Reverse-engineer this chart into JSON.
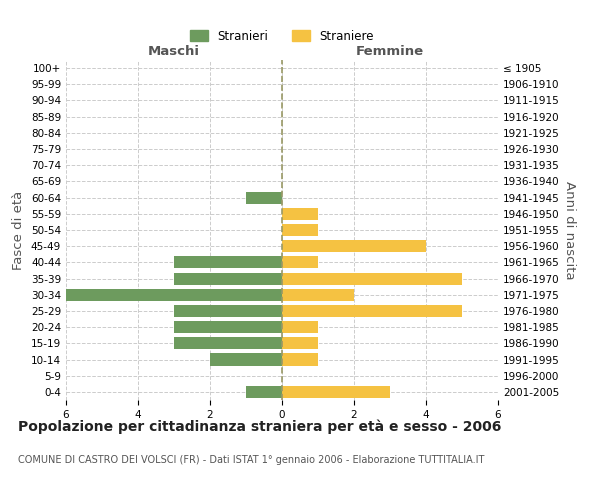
{
  "age_groups": [
    "100+",
    "95-99",
    "90-94",
    "85-89",
    "80-84",
    "75-79",
    "70-74",
    "65-69",
    "60-64",
    "55-59",
    "50-54",
    "45-49",
    "40-44",
    "35-39",
    "30-34",
    "25-29",
    "20-24",
    "15-19",
    "10-14",
    "5-9",
    "0-4"
  ],
  "birth_years": [
    "≤ 1905",
    "1906-1910",
    "1911-1915",
    "1916-1920",
    "1921-1925",
    "1926-1930",
    "1931-1935",
    "1936-1940",
    "1941-1945",
    "1946-1950",
    "1951-1955",
    "1956-1960",
    "1961-1965",
    "1966-1970",
    "1971-1975",
    "1976-1980",
    "1981-1985",
    "1986-1990",
    "1991-1995",
    "1996-2000",
    "2001-2005"
  ],
  "males": [
    0,
    0,
    0,
    0,
    0,
    0,
    0,
    0,
    1,
    0,
    0,
    0,
    3,
    3,
    6,
    3,
    3,
    3,
    2,
    0,
    1
  ],
  "females": [
    0,
    0,
    0,
    0,
    0,
    0,
    0,
    0,
    0,
    1,
    1,
    4,
    1,
    5,
    2,
    5,
    1,
    1,
    1,
    0,
    3
  ],
  "male_color": "#6d9b5e",
  "female_color": "#f5c242",
  "title": "Popolazione per cittadinanza straniera per età e sesso - 2006",
  "subtitle": "COMUNE DI CASTRO DEI VOLSCI (FR) - Dati ISTAT 1° gennaio 2006 - Elaborazione TUTTITALIA.IT",
  "ylabel_left": "Fasce di età",
  "ylabel_right": "Anni di nascita",
  "xlabel_left": "Maschi",
  "xlabel_right": "Femmine",
  "legend_males": "Stranieri",
  "legend_females": "Straniere",
  "xlim": 6,
  "bg_color": "#ffffff",
  "grid_color": "#cccccc",
  "bar_height": 0.75,
  "title_fontsize": 10,
  "subtitle_fontsize": 7,
  "tick_fontsize": 7.5,
  "label_fontsize": 9.5
}
